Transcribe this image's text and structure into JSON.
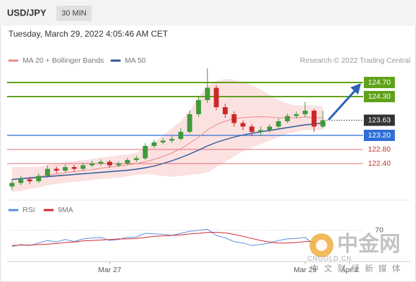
{
  "chart_data": [
    {
      "type": "candlestick",
      "title": "USD/JPY",
      "timeframe": "30 MIN",
      "subtitle": "Tuesday, March 29, 2022 4:05:46 AM CET",
      "source": "Research © 2022 Trading Central",
      "up_color": "#3f9a3a",
      "down_color": "#cc2727",
      "open": [
        121.75,
        121.85,
        121.95,
        121.9,
        122.05,
        122.25,
        122.2,
        122.3,
        122.25,
        122.35,
        122.4,
        122.45,
        122.35,
        122.4,
        122.5,
        122.55,
        122.9,
        123.0,
        123.05,
        123.1,
        123.3,
        123.8,
        124.2,
        124.55,
        124.0,
        123.8,
        123.55,
        123.45,
        123.3,
        123.35,
        123.45,
        123.6,
        123.75,
        123.8,
        123.9,
        123.45
      ],
      "high": [
        121.95,
        122.05,
        122.02,
        122.12,
        122.35,
        122.32,
        122.38,
        122.36,
        122.42,
        122.48,
        122.52,
        122.5,
        122.46,
        122.56,
        122.62,
        122.98,
        123.08,
        123.12,
        123.2,
        123.4,
        123.9,
        124.3,
        125.1,
        124.62,
        124.1,
        123.88,
        123.62,
        123.52,
        123.45,
        123.52,
        123.68,
        123.82,
        123.88,
        124.15,
        123.95,
        123.9
      ],
      "low": [
        121.65,
        121.78,
        121.82,
        121.85,
        122.0,
        122.12,
        122.15,
        122.18,
        122.2,
        122.3,
        122.34,
        122.28,
        122.3,
        122.35,
        122.44,
        122.5,
        122.84,
        122.94,
        122.98,
        123.05,
        123.25,
        123.72,
        124.12,
        123.92,
        123.7,
        123.45,
        123.35,
        123.18,
        123.2,
        123.28,
        123.4,
        123.55,
        123.68,
        123.72,
        123.3,
        123.4
      ],
      "close": [
        121.85,
        121.95,
        121.9,
        122.05,
        122.25,
        122.2,
        122.3,
        122.25,
        122.35,
        122.4,
        122.45,
        122.35,
        122.4,
        122.5,
        122.55,
        122.9,
        123.0,
        123.05,
        123.1,
        123.3,
        123.8,
        124.2,
        124.55,
        124.0,
        123.8,
        123.55,
        123.45,
        123.3,
        123.35,
        123.45,
        123.6,
        123.75,
        123.8,
        123.9,
        123.45,
        123.63
      ],
      "overlays": [
        {
          "name": "MA 20 + Bollinger Bands",
          "color": "#e98a8a",
          "band_color": "#fbd9d9",
          "values": [
            121.95,
            121.97,
            122.0,
            122.03,
            122.07,
            122.1,
            122.14,
            122.17,
            122.2,
            122.23,
            122.27,
            122.3,
            122.33,
            122.36,
            122.4,
            122.45,
            122.52,
            122.6,
            122.7,
            122.82,
            122.98,
            123.15,
            123.35,
            123.5,
            123.6,
            123.67,
            123.7,
            123.72,
            123.73,
            123.72,
            123.7,
            123.7,
            123.7,
            123.72,
            123.7,
            123.7
          ],
          "upper": [
            122.3,
            122.3,
            122.3,
            122.32,
            122.36,
            122.4,
            122.44,
            122.47,
            122.5,
            122.53,
            122.57,
            122.6,
            122.63,
            122.66,
            122.7,
            122.85,
            123.0,
            123.2,
            123.4,
            123.6,
            123.9,
            124.3,
            124.6,
            124.75,
            124.8,
            124.78,
            124.72,
            124.62,
            124.5,
            124.35,
            124.2,
            124.1,
            124.05,
            124.05,
            124.05,
            124.02
          ],
          "lower": [
            121.6,
            121.62,
            121.68,
            121.72,
            121.78,
            121.82,
            121.85,
            121.88,
            121.9,
            121.93,
            121.96,
            121.98,
            122.0,
            122.04,
            122.08,
            122.1,
            122.08,
            122.05,
            122.02,
            122.05,
            122.08,
            122.1,
            122.15,
            122.3,
            122.45,
            122.6,
            122.75,
            122.85,
            122.95,
            123.05,
            123.15,
            123.25,
            123.3,
            123.35,
            123.35,
            123.35
          ]
        },
        {
          "name": "MA 50",
          "color": "#2b5797",
          "values": [
            121.95,
            121.97,
            121.99,
            122.01,
            122.03,
            122.05,
            122.07,
            122.09,
            122.11,
            122.13,
            122.15,
            122.17,
            122.19,
            122.21,
            122.24,
            122.28,
            122.33,
            122.4,
            122.48,
            122.57,
            122.67,
            122.78,
            122.9,
            123.0,
            123.08,
            123.15,
            123.21,
            123.26,
            123.3,
            123.34,
            123.38,
            123.42,
            123.46,
            123.5,
            123.52,
            123.55
          ]
        }
      ],
      "levels": [
        {
          "value": 124.7,
          "label": "124.70",
          "color": "#5fa21a",
          "style": "box"
        },
        {
          "value": 124.3,
          "label": "124.30",
          "color": "#5fa21a",
          "style": "box"
        },
        {
          "value": 123.63,
          "label": "123.63",
          "color": "#333333",
          "style": "current"
        },
        {
          "value": 123.2,
          "label": "123.20",
          "color": "#2f6fd6",
          "style": "box"
        },
        {
          "value": 122.8,
          "label": "122.80",
          "color": "#e07070",
          "style": "text"
        },
        {
          "value": 122.4,
          "label": "122.40",
          "color": "#e07070",
          "style": "text"
        }
      ],
      "ylim": [
        121.44,
        125.14
      ]
    },
    {
      "type": "line",
      "categories": [
        null,
        null,
        null,
        null,
        null,
        null,
        null,
        null,
        null,
        null,
        null,
        "Mar 27",
        null,
        null,
        null,
        null,
        null,
        null,
        null,
        null,
        null,
        null,
        null,
        null,
        null,
        null,
        null,
        null,
        null,
        null,
        null,
        null,
        null,
        "Mar 29",
        null,
        null,
        null,
        null,
        "Apr 4",
        null,
        null,
        null
      ],
      "series": [
        {
          "name": "RSI",
          "color": "#5b8de0",
          "values": [
            38,
            42,
            40,
            45,
            50,
            47,
            52,
            48,
            53,
            55,
            56,
            50,
            52,
            56,
            57,
            64,
            63,
            62,
            60,
            64,
            68,
            70,
            72,
            60,
            55,
            48,
            45,
            40,
            42,
            45,
            50,
            53,
            54,
            56,
            42,
            48,
            null,
            null,
            null,
            null,
            null,
            null
          ]
        },
        {
          "name": "9MA",
          "color": "#d62728",
          "values": [
            40,
            41,
            41,
            42,
            43,
            44,
            46,
            47,
            49,
            50,
            51,
            52,
            53,
            53,
            54,
            56,
            58,
            59,
            60,
            61,
            63,
            64,
            66,
            66,
            65,
            62,
            58,
            54,
            50,
            47,
            45,
            45,
            46,
            48,
            48,
            49,
            null,
            null,
            null,
            null,
            null,
            null
          ]
        }
      ],
      "ylim": [
        10,
        100
      ],
      "yticks": [
        70
      ]
    }
  ],
  "watermark": {
    "name": "中金网",
    "site": "CNGOLD.CN",
    "tagline": "中 文 财 经 新 媒 体"
  }
}
